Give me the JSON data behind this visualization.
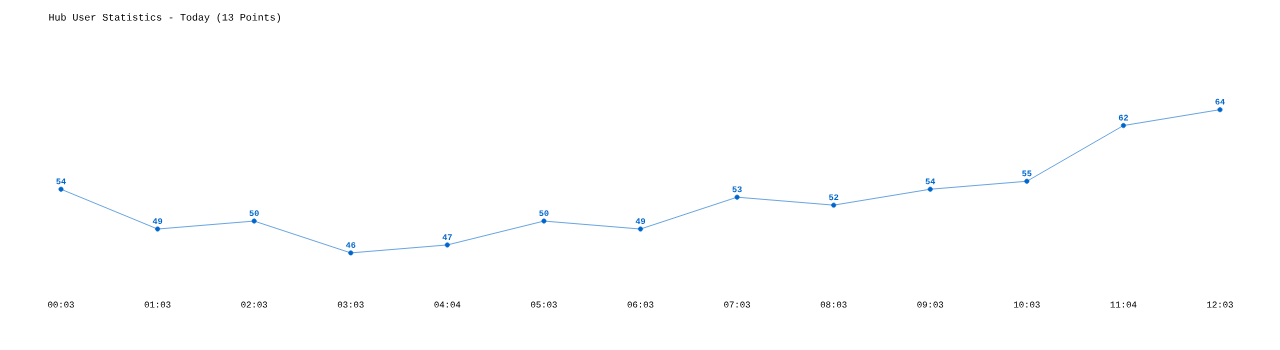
{
  "chart_data": {
    "type": "line",
    "title": "Hub User Statistics - Today (13 Points)",
    "categories": [
      "00:03",
      "01:03",
      "02:03",
      "03:03",
      "04:04",
      "05:03",
      "06:03",
      "07:03",
      "08:03",
      "09:03",
      "10:03",
      "11:04",
      "12:03"
    ],
    "values": [
      54,
      49,
      50,
      46,
      47,
      50,
      49,
      53,
      52,
      54,
      55,
      62,
      64
    ],
    "color": "#0066cc",
    "marker": "circle",
    "data_labels": true
  }
}
